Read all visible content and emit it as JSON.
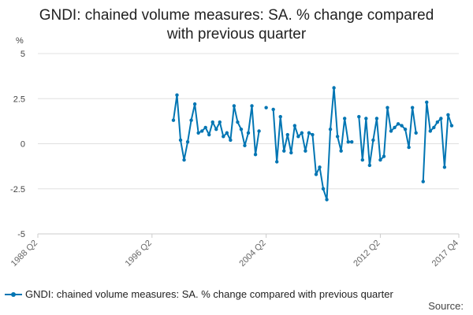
{
  "colors": {
    "series": "#0075b3",
    "grid": "#e0e0e0",
    "axis": "#cccccc"
  },
  "chart_data": {
    "type": "line",
    "title_line1": "GNDI: chained volume measures: SA. % change compared",
    "title_line2": "with previous quarter",
    "ylabel": "%",
    "ylim": [
      -5,
      5
    ],
    "yticks": [
      5,
      2.5,
      0,
      -2.5,
      -5
    ],
    "ytick_labels": [
      "5",
      "2.5",
      "0",
      "-2.5",
      "-5"
    ],
    "xtick_labels": [
      "1988 Q2",
      "1996 Q2",
      "2004 Q2",
      "2012 Q2",
      "2017 Q4"
    ],
    "xtick_quarters": [
      "1988 Q2",
      "1996 Q2",
      "2004 Q2",
      "2012 Q2",
      "2017 Q4"
    ],
    "x_range": [
      "1988 Q2",
      "2017 Q4"
    ],
    "grid": "horizontal",
    "legend_position": "bottom",
    "series": [
      {
        "name": "GNDI: chained volume measures: SA. % change compared with previous quarter",
        "start": "1997 Q4",
        "values": [
          1.3,
          2.7,
          0.2,
          -0.9,
          0.1,
          1.3,
          2.2,
          0.6,
          0.7,
          0.9,
          0.5,
          1.2,
          0.8,
          1.2,
          0.4,
          0.6,
          0.2,
          2.1,
          1.2,
          0.8,
          -0.1,
          0.6,
          2.1,
          -0.6,
          0.7,
          null,
          2.0,
          null,
          1.9,
          -1.0,
          1.5,
          -0.4,
          0.5,
          -0.5,
          1.0,
          0.4,
          0.6,
          -0.4,
          0.6,
          0.5,
          -1.7,
          -1.3,
          -2.5,
          -3.1,
          0.8,
          3.1,
          0.4,
          -0.4,
          1.4,
          0.1,
          0.1,
          null,
          1.5,
          -0.9,
          1.4,
          -1.2,
          0.2,
          1.4,
          -0.9,
          -0.7,
          2.0,
          0.7,
          0.9,
          1.1,
          1.0,
          0.8,
          -0.2,
          2.0,
          0.6,
          null,
          -2.1,
          2.3,
          0.7,
          0.9,
          1.2,
          1.4,
          -1.3,
          1.6,
          1.0
        ]
      }
    ]
  },
  "legend": {
    "label": "GNDI: chained volume measures: SA. % change compared with previous quarter"
  },
  "footer": {
    "source": "Source:"
  }
}
